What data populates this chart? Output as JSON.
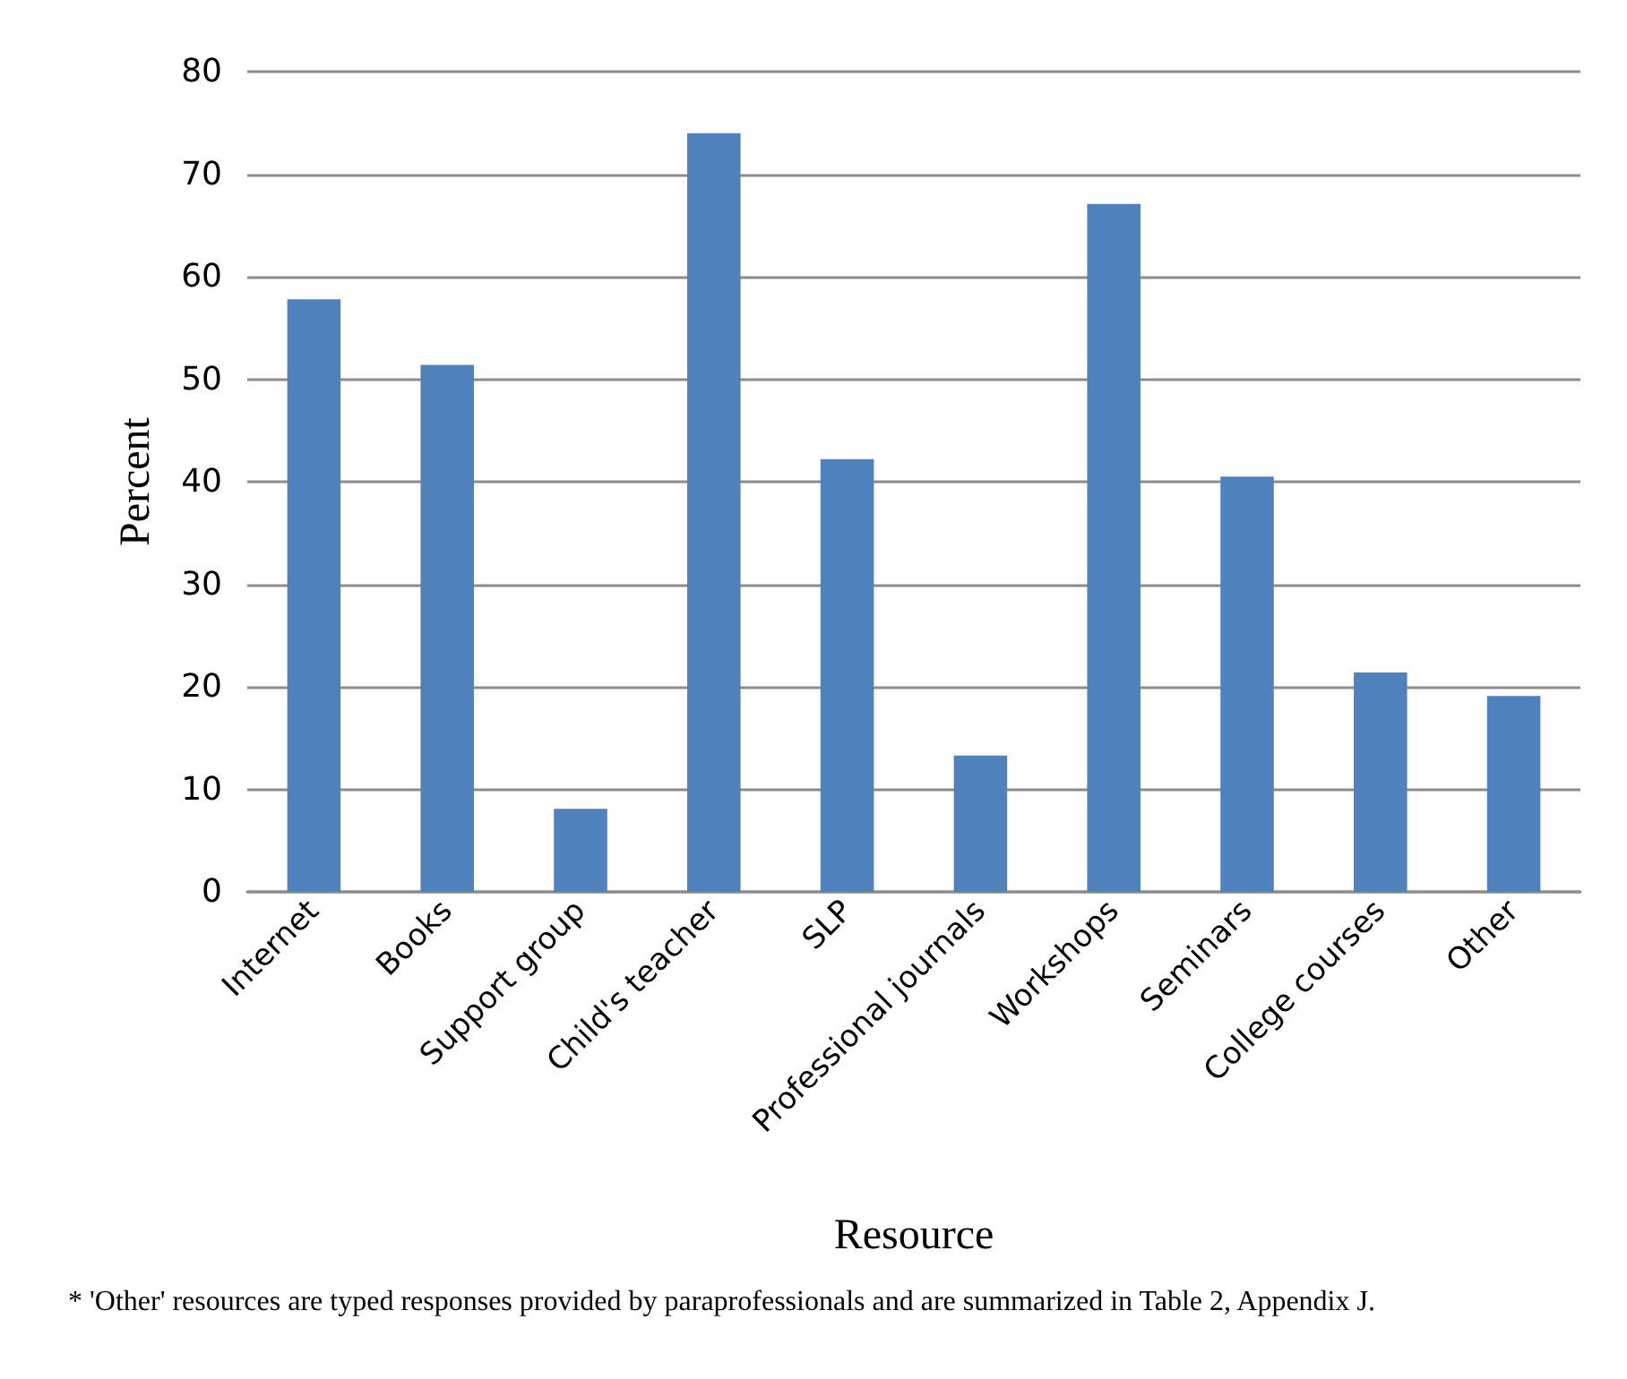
{
  "chart_data": {
    "type": "bar",
    "xlabel": "Resource",
    "ylabel": "Percent",
    "categories": [
      "Internet",
      "Books",
      "Support group",
      "Child's teacher",
      "SLP",
      "Professional journals",
      "Workshops",
      "Seminars",
      "College courses",
      "Other"
    ],
    "values": [
      57.8,
      51.4,
      8.1,
      74.0,
      42.2,
      13.3,
      67.1,
      40.5,
      21.4,
      19.1
    ],
    "color": "#4f81bd",
    "ylim": [
      0,
      80
    ],
    "yticks": [
      0,
      10,
      20,
      30,
      40,
      50,
      60,
      70,
      80
    ],
    "grid": "y",
    "annotations": [
      "* 'Other' resources are typed responses provided by paraprofessionals and are summarized in Table 2, Appendix J."
    ]
  }
}
